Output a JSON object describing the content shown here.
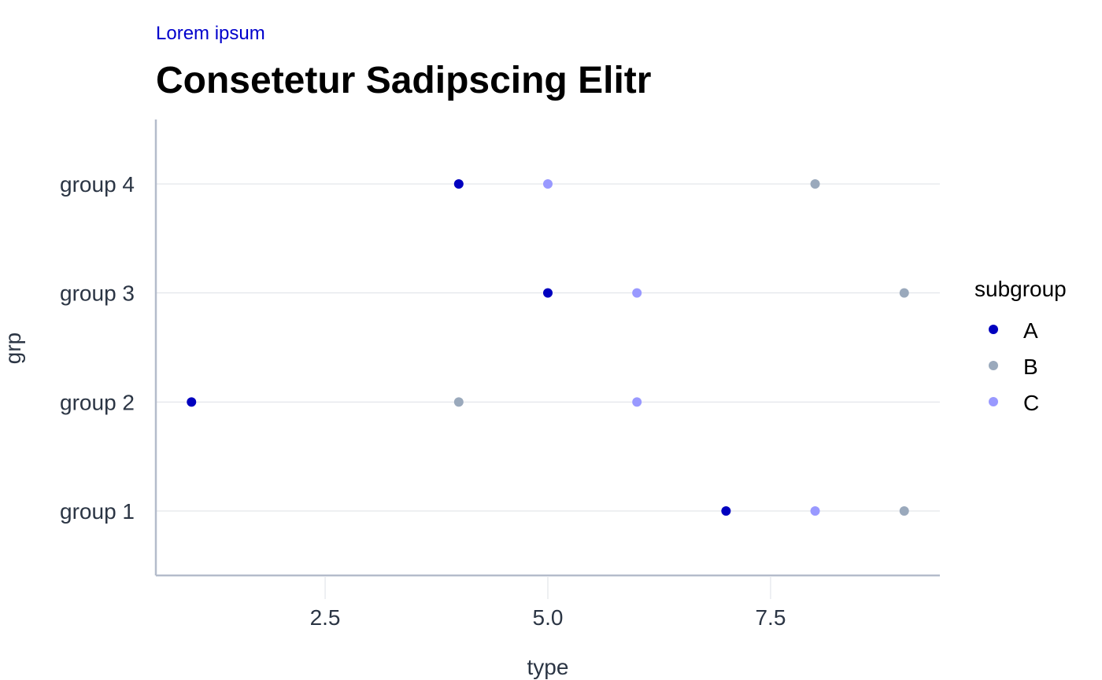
{
  "chart_data": {
    "type": "scatter",
    "subtitle": "Lorem ipsum",
    "title": "Consetetur Sadipscing Elitr",
    "xlabel": "type",
    "ylabel": "grp",
    "xlim": [
      0.6,
      9.4
    ],
    "x_ticks": [
      2.5,
      5.0,
      7.5
    ],
    "x_tick_labels": [
      "2.5",
      "5.0",
      "7.5"
    ],
    "categories": [
      "group 1",
      "group 2",
      "group 3",
      "group 4"
    ],
    "grid": true,
    "legend": {
      "title": "subgroup",
      "placement": "right",
      "entries": [
        "A",
        "B",
        "C"
      ]
    },
    "colors": {
      "A": "#0000bf",
      "B": "#9aa9bc",
      "C": "#9999ff"
    },
    "series": [
      {
        "name": "A",
        "points": [
          {
            "x": 7,
            "y": "group 1"
          },
          {
            "x": 1,
            "y": "group 2"
          },
          {
            "x": 5,
            "y": "group 3"
          },
          {
            "x": 4,
            "y": "group 4"
          }
        ]
      },
      {
        "name": "B",
        "points": [
          {
            "x": 9,
            "y": "group 1"
          },
          {
            "x": 4,
            "y": "group 2"
          },
          {
            "x": 9,
            "y": "group 3"
          },
          {
            "x": 8,
            "y": "group 4"
          }
        ]
      },
      {
        "name": "C",
        "points": [
          {
            "x": 8,
            "y": "group 1"
          },
          {
            "x": 6,
            "y": "group 2"
          },
          {
            "x": 6,
            "y": "group 3"
          },
          {
            "x": 5,
            "y": "group 4"
          }
        ]
      }
    ]
  }
}
